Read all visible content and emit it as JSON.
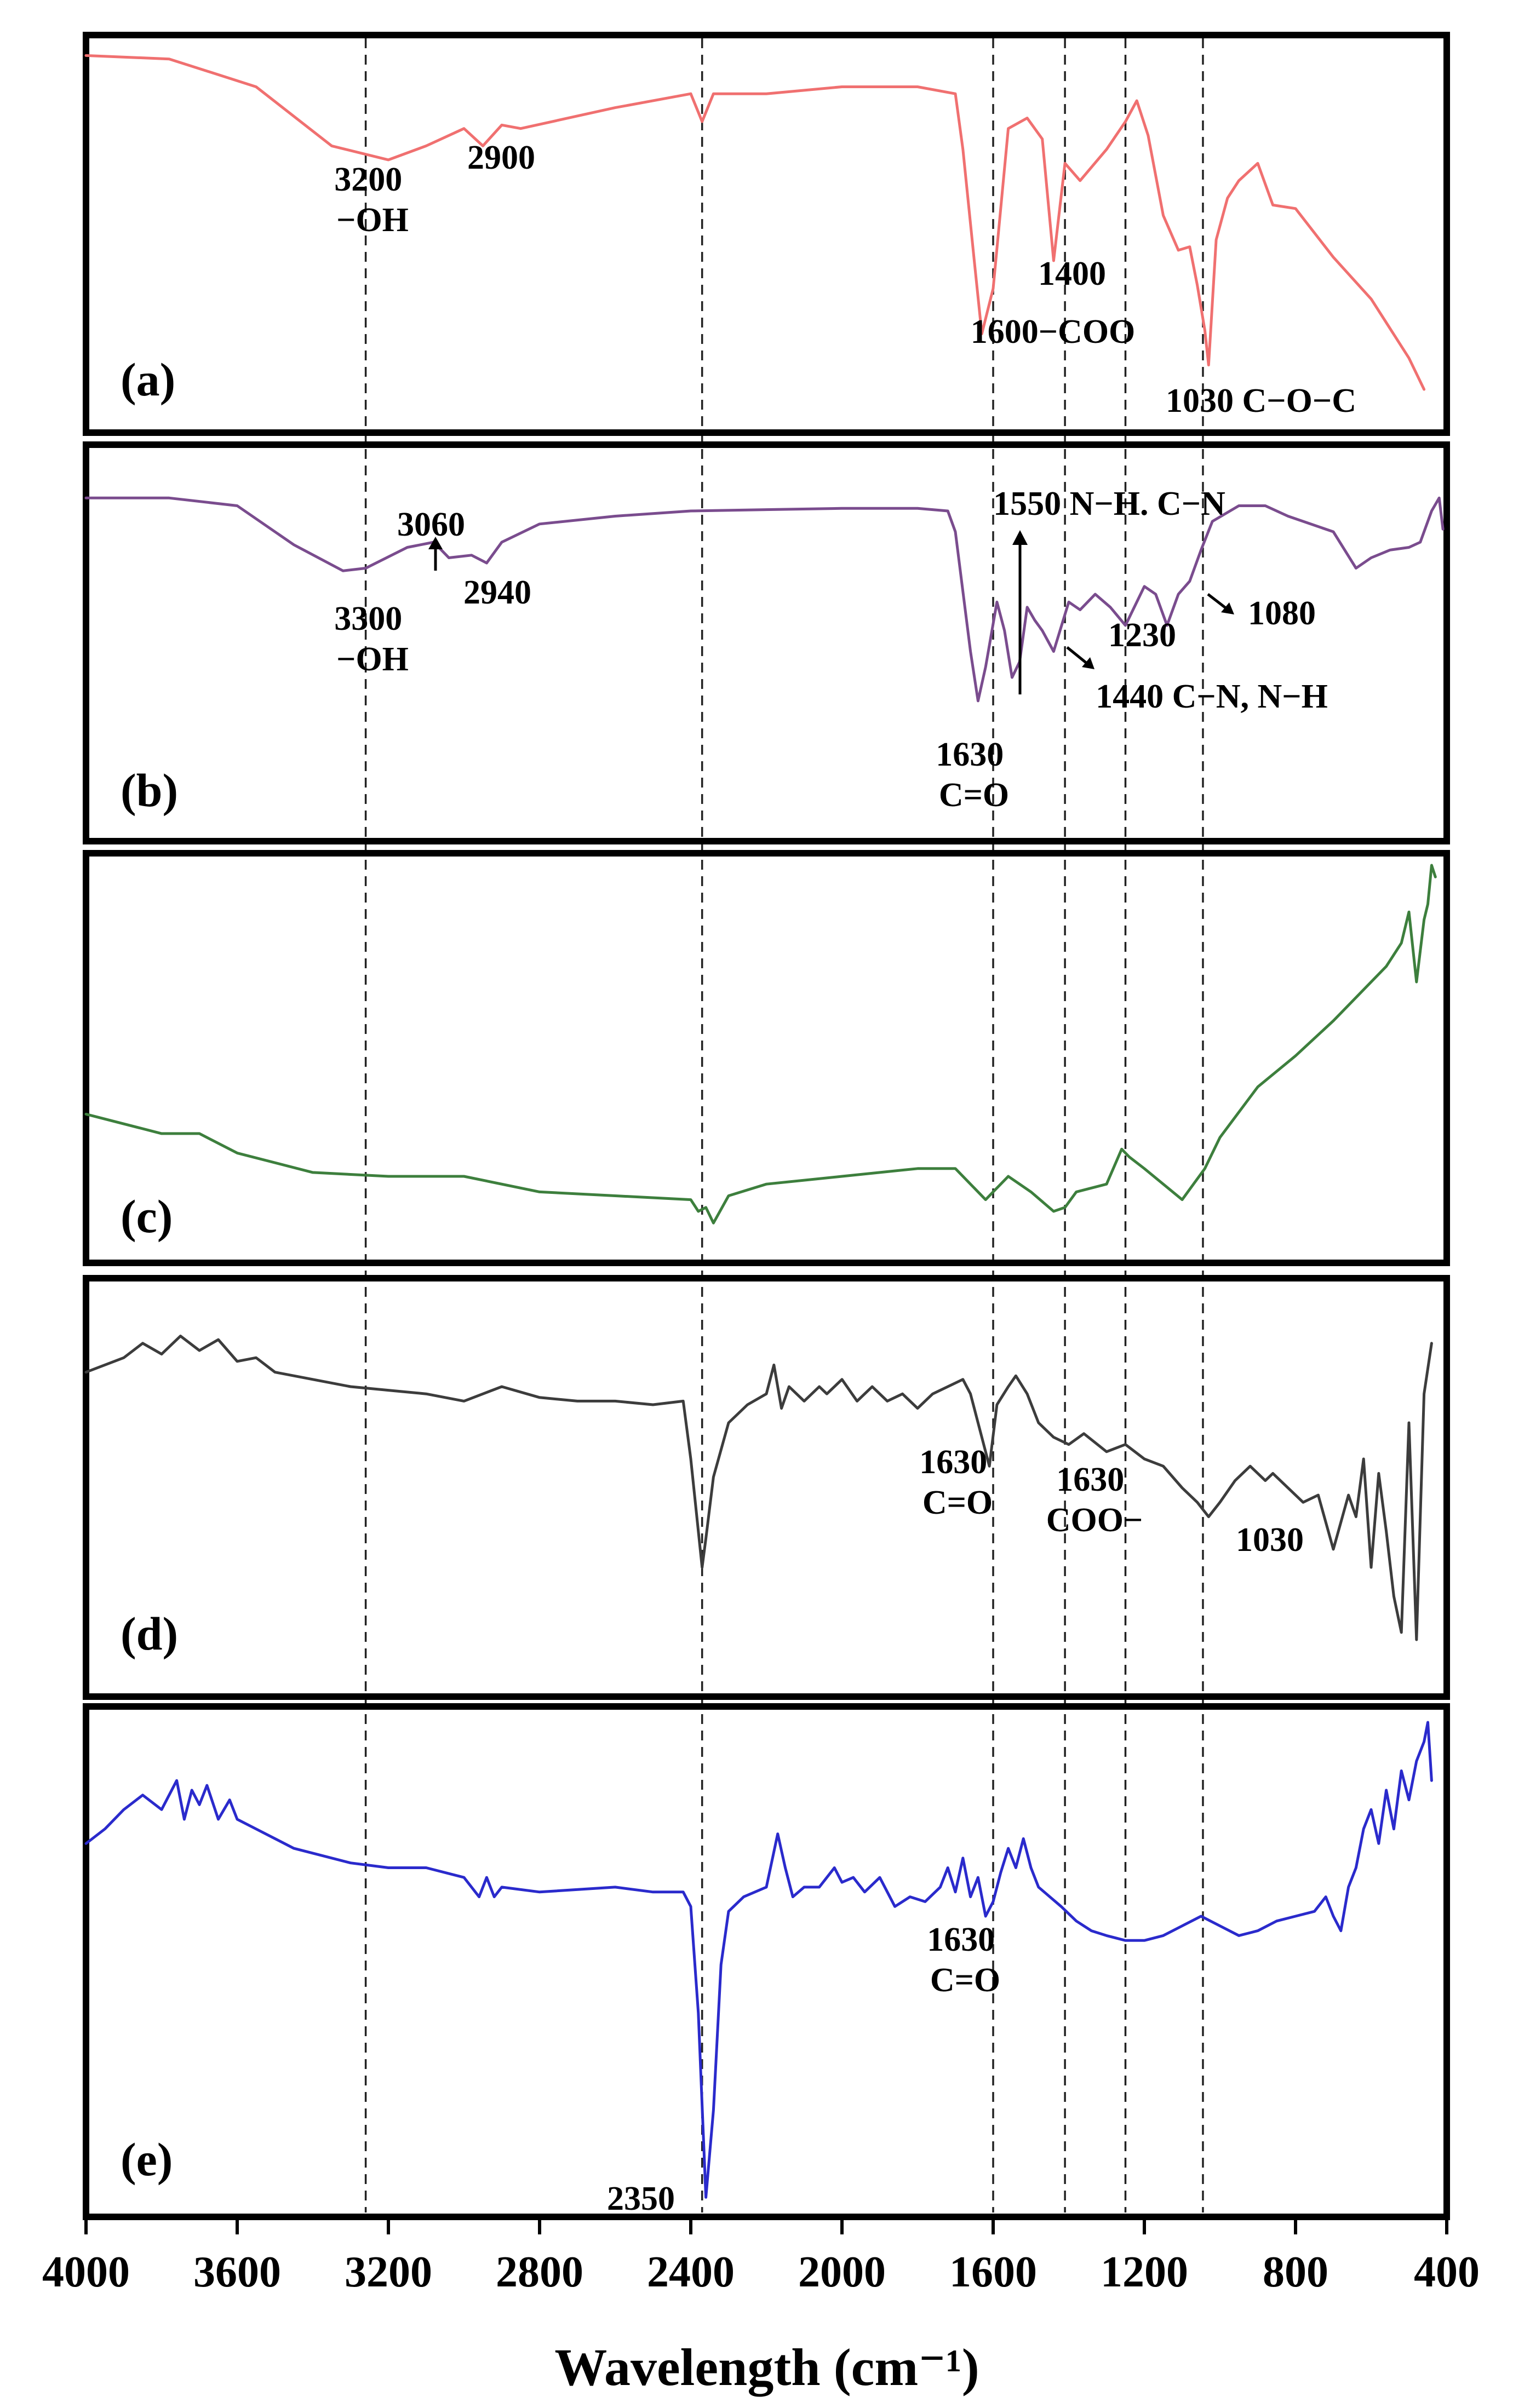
{
  "chart_data": {
    "type": "line",
    "xlabel": "Wavelength (cm⁻¹)",
    "x_range": [
      4000,
      400
    ],
    "x_reversed": true,
    "x_ticks": [
      "4000",
      "3600",
      "3200",
      "2800",
      "2400",
      "2000",
      "1600",
      "1200",
      "800",
      "400"
    ],
    "grid": false,
    "reference_lines": [
      3260,
      2370,
      1600,
      1410,
      1250,
      1045
    ],
    "panels": [
      {
        "label": "(a)",
        "color": "#f07070",
        "annotations": [
          {
            "lines": [
              "3200",
              "−OH"
            ]
          },
          {
            "lines": [
              "2900"
            ]
          },
          {
            "lines": [
              "1400"
            ]
          },
          {
            "lines": [
              "1600−COO"
            ]
          },
          {
            "lines": [
              "1030 C−O−C"
            ]
          }
        ],
        "series": [
          {
            "x": [
              4000,
              3780,
              3550,
              3350,
              3200,
              3100,
              3000,
              2950,
              2900,
              2850,
              2600,
              2400,
              2370,
              2340,
              2200,
              2000,
              1800,
              1700,
              1680,
              1650,
              1630,
              1600,
              1560,
              1510,
              1470,
              1440,
              1410,
              1370,
              1300,
              1250,
              1220,
              1190,
              1150,
              1110,
              1080,
              1060,
              1040,
              1030,
              1010,
              980,
              950,
              900,
              860,
              800,
              700,
              600,
              500,
              460
            ],
            "y": [
              99,
              98,
              90,
              73,
              69,
              73,
              78,
              73,
              79,
              78,
              84,
              88,
              80,
              88,
              88,
              90,
              90,
              88,
              72,
              40,
              19,
              32,
              78,
              81,
              75,
              40,
              68,
              63,
              72,
              80,
              86,
              76,
              53,
              43,
              44,
              33,
              20,
              10,
              46,
              58,
              63,
              68,
              56,
              55,
              41,
              29,
              12,
              3
            ]
          }
        ]
      },
      {
        "label": "(b)",
        "color": "#7a4c8e",
        "annotations": [
          {
            "lines": [
              "3060"
            ]
          },
          {
            "lines": [
              "3300",
              "−OH"
            ]
          },
          {
            "lines": [
              "2940"
            ]
          },
          {
            "lines": [
              "1550 N−H. C−N"
            ]
          },
          {
            "lines": [
              "1440 C−N, N−H"
            ]
          },
          {
            "lines": [
              "1230"
            ]
          },
          {
            "lines": [
              "1080"
            ]
          },
          {
            "lines": [
              "1630",
              "C=O"
            ]
          }
        ],
        "series": [
          {
            "x": [
              4000,
              3780,
              3600,
              3450,
              3320,
              3260,
              3150,
              3080,
              3040,
              2980,
              2940,
              2900,
              2800,
              2600,
              2400,
              2000,
              1800,
              1720,
              1700,
              1660,
              1640,
              1620,
              1590,
              1570,
              1550,
              1530,
              1510,
              1490,
              1470,
              1440,
              1400,
              1370,
              1330,
              1290,
              1250,
              1230,
              1200,
              1170,
              1140,
              1110,
              1080,
              1050,
              1020,
              950,
              880,
              820,
              760,
              700,
              640,
              600,
              550,
              500,
              470,
              440,
              420,
              410
            ],
            "y": [
              97,
              97,
              94,
              79,
              69,
              70,
              78,
              80,
              74,
              75,
              72,
              80,
              87,
              90,
              92,
              93,
              93,
              92,
              84,
              38,
              19,
              32,
              57,
              46,
              28,
              34,
              55,
              50,
              46,
              38,
              57,
              54,
              60,
              55,
              48,
              54,
              63,
              60,
              48,
              60,
              65,
              77,
              88,
              94,
              94,
              90,
              87,
              84,
              70,
              74,
              77,
              78,
              80,
              92,
              97,
              85
            ]
          }
        ]
      },
      {
        "label": "(c)",
        "color": "#3d7f3d",
        "annotations": [],
        "series": [
          {
            "x": [
              4000,
              3800,
              3700,
              3600,
              3400,
              3200,
              3000,
              2800,
              2600,
              2400,
              2380,
              2360,
              2340,
              2300,
              2200,
              2000,
              1800,
              1700,
              1650,
              1620,
              1600,
              1560,
              1500,
              1440,
              1410,
              1380,
              1300,
              1260,
              1240,
              1200,
              1150,
              1100,
              1070,
              1040,
              1000,
              900,
              800,
              700,
              600,
              560,
              520,
              500,
              480,
              460,
              450,
              440,
              430
            ],
            "y": [
              36,
              31,
              31,
              26,
              21,
              20,
              20,
              16,
              15,
              14,
              11,
              12,
              8,
              15,
              18,
              20,
              22,
              22,
              17,
              14,
              16,
              20,
              16,
              11,
              12,
              16,
              18,
              27,
              25,
              22,
              18,
              14,
              18,
              22,
              30,
              43,
              51,
              60,
              70,
              74,
              80,
              88,
              70,
              86,
              90,
              100,
              97
            ]
          }
        ]
      },
      {
        "label": "(d)",
        "color": "#3c3c3c",
        "annotations": [
          {
            "lines": [
              "1630",
              "C=O"
            ]
          },
          {
            "lines": [
              "1630",
              "COO−"
            ]
          },
          {
            "lines": [
              "1030"
            ]
          }
        ],
        "series": [
          {
            "x": [
              4000,
              3900,
              3850,
              3800,
              3750,
              3700,
              3650,
              3600,
              3550,
              3500,
              3400,
              3300,
              3200,
              3100,
              3000,
              2900,
              2800,
              2700,
              2600,
              2500,
              2420,
              2400,
              2380,
              2370,
              2360,
              2340,
              2300,
              2250,
              2200,
              2180,
              2160,
              2140,
              2100,
              2060,
              2040,
              2000,
              1960,
              1920,
              1880,
              1840,
              1800,
              1760,
              1720,
              1680,
              1660,
              1640,
              1610,
              1590,
              1560,
              1540,
              1510,
              1480,
              1440,
              1400,
              1360,
              1300,
              1250,
              1200,
              1150,
              1100,
              1060,
              1030,
              1000,
              960,
              920,
              880,
              860,
              820,
              780,
              740,
              700,
              660,
              640,
              620,
              600,
              580,
              560,
              540,
              520,
              500,
              480,
              460,
              440
            ],
            "y": [
              84,
              88,
              92,
              89,
              94,
              90,
              93,
              87,
              88,
              84,
              82,
              80,
              79,
              78,
              76,
              80,
              77,
              76,
              76,
              75,
              76,
              60,
              40,
              30,
              38,
              55,
              70,
              75,
              78,
              86,
              74,
              80,
              76,
              80,
              78,
              82,
              76,
              80,
              76,
              78,
              74,
              78,
              80,
              82,
              78,
              70,
              58,
              75,
              80,
              83,
              78,
              70,
              66,
              64,
              67,
              62,
              64,
              60,
              58,
              52,
              48,
              44,
              48,
              54,
              58,
              54,
              56,
              52,
              48,
              50,
              35,
              50,
              44,
              60,
              30,
              56,
              40,
              22,
              12,
              70,
              10,
              78,
              92
            ]
          }
        ]
      },
      {
        "label": "(e)",
        "color": "#2a2acc",
        "annotations": [
          {
            "lines": [
              "1630",
              "C=O"
            ]
          },
          {
            "lines": [
              "2350"
            ]
          }
        ],
        "series": [
          {
            "x": [
              4000,
              3950,
              3900,
              3850,
              3800,
              3760,
              3740,
              3720,
              3700,
              3680,
              3650,
              3620,
              3600,
              3550,
              3500,
              3450,
              3400,
              3300,
              3200,
              3100,
              3000,
              2960,
              2940,
              2920,
              2900,
              2800,
              2600,
              2500,
              2420,
              2400,
              2380,
              2360,
              2340,
              2320,
              2300,
              2260,
              2200,
              2170,
              2150,
              2130,
              2100,
              2060,
              2020,
              2000,
              1970,
              1940,
              1900,
              1860,
              1820,
              1780,
              1740,
              1720,
              1700,
              1680,
              1660,
              1640,
              1620,
              1600,
              1580,
              1560,
              1540,
              1520,
              1500,
              1480,
              1450,
              1420,
              1380,
              1340,
              1300,
              1250,
              1200,
              1150,
              1100,
              1050,
              1000,
              950,
              900,
              850,
              800,
              750,
              720,
              700,
              680,
              660,
              640,
              620,
              600,
              580,
              560,
              540,
              520,
              500,
              480,
              460,
              450,
              440
            ],
            "y": [
              75,
              78,
              82,
              85,
              82,
              88,
              80,
              86,
              83,
              87,
              80,
              84,
              80,
              78,
              76,
              74,
              73,
              71,
              70,
              70,
              68,
              64,
              68,
              64,
              66,
              65,
              66,
              65,
              65,
              62,
              40,
              2,
              20,
              50,
              61,
              64,
              66,
              77,
              70,
              64,
              66,
              66,
              70,
              67,
              68,
              65,
              68,
              62,
              64,
              63,
              66,
              70,
              65,
              72,
              64,
              68,
              60,
              63,
              69,
              74,
              70,
              76,
              70,
              66,
              64,
              62,
              59,
              57,
              56,
              55,
              55,
              56,
              58,
              60,
              58,
              56,
              57,
              59,
              60,
              61,
              64,
              60,
              57,
              66,
              70,
              78,
              82,
              75,
              86,
              78,
              90,
              84,
              92,
              96,
              100,
              88
            ]
          }
        ]
      }
    ]
  }
}
